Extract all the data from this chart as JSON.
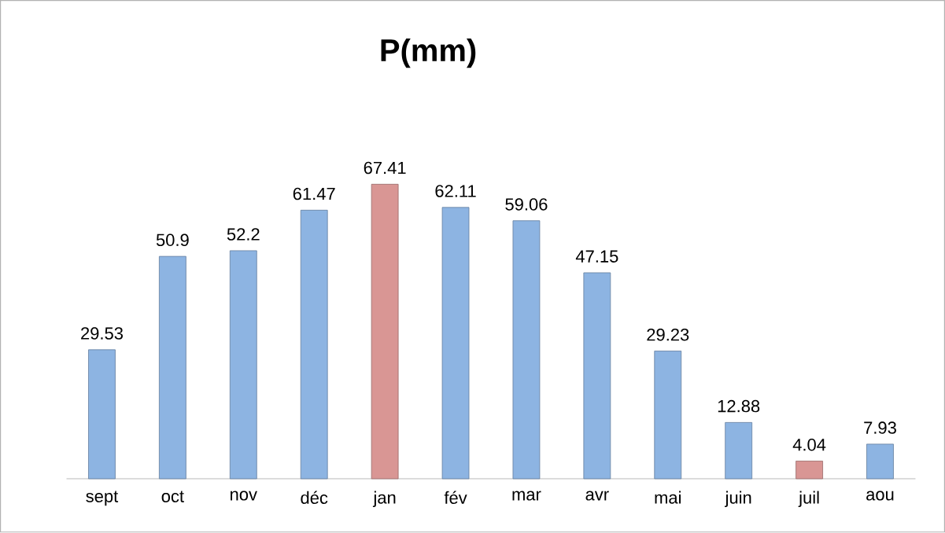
{
  "chart_data": {
    "type": "bar",
    "title": "P(mm)",
    "categories": [
      "sept",
      "oct",
      "nov",
      "déc",
      "jan",
      "fév",
      "mar",
      "avr",
      "mai",
      "juin",
      "juil",
      "aou"
    ],
    "values": [
      29.53,
      50.9,
      52.2,
      61.47,
      67.41,
      62.11,
      59.06,
      47.15,
      29.23,
      12.88,
      4.04,
      7.93
    ],
    "colors": [
      "#8db4e2",
      "#8db4e2",
      "#8db4e2",
      "#8db4e2",
      "#d99694",
      "#8db4e2",
      "#8db4e2",
      "#8db4e2",
      "#8db4e2",
      "#8db4e2",
      "#d99694",
      "#8db4e2"
    ],
    "data_labels": true
  }
}
